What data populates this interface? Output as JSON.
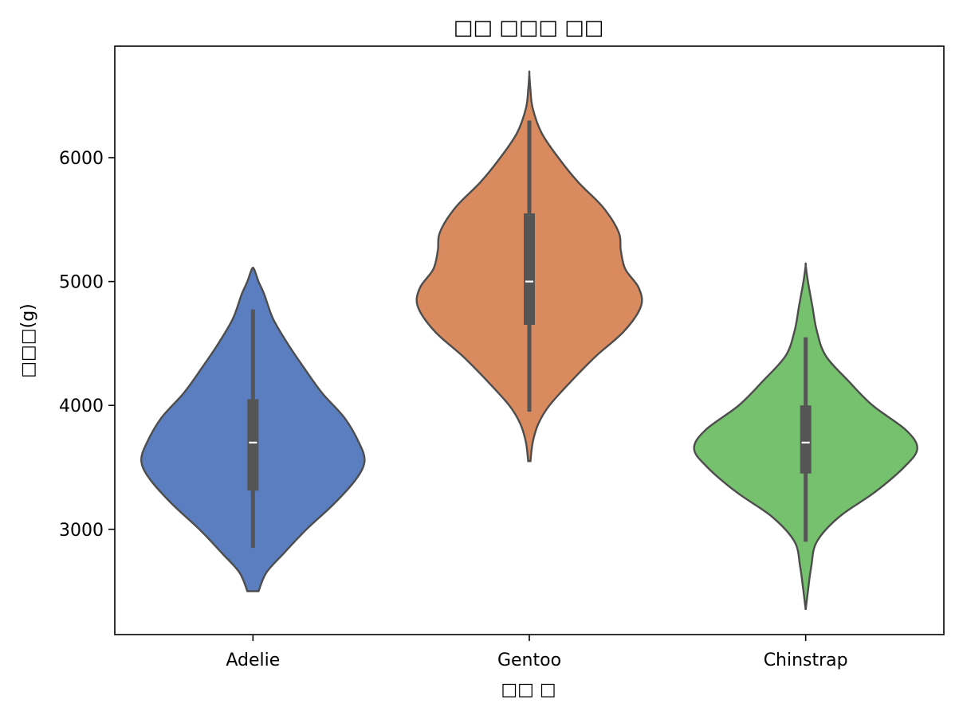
{
  "chart_data": {
    "type": "violin",
    "title": "□□ □□□ □□",
    "xlabel": "□□ □",
    "ylabel": "□□□(g)",
    "ylim": [
      2150,
      6900
    ],
    "yticks": [
      3000,
      4000,
      5000,
      6000
    ],
    "categories": [
      "Adelie",
      "Gentoo",
      "Chinstrap"
    ],
    "colors": [
      "#5b7ec0",
      "#d98a5f",
      "#76c16e"
    ],
    "outline_color": "#4d4d4d",
    "box_color": "#555555",
    "grid": false,
    "violins": [
      {
        "name": "Adelie",
        "min": 2850,
        "q1": 3312,
        "median": 3700,
        "q3": 4050,
        "max": 4775,
        "kde_range": [
          2500,
          5100
        ],
        "density": [
          [
            2500,
            0.05
          ],
          [
            2650,
            0.12
          ],
          [
            2800,
            0.27
          ],
          [
            3000,
            0.48
          ],
          [
            3200,
            0.72
          ],
          [
            3400,
            0.92
          ],
          [
            3550,
            1.0
          ],
          [
            3700,
            0.95
          ],
          [
            3900,
            0.82
          ],
          [
            4100,
            0.62
          ],
          [
            4300,
            0.46
          ],
          [
            4500,
            0.31
          ],
          [
            4700,
            0.18
          ],
          [
            4900,
            0.1
          ],
          [
            5000,
            0.05
          ],
          [
            5100,
            0.01
          ]
        ]
      },
      {
        "name": "Gentoo",
        "min": 3950,
        "q1": 4650,
        "median": 5000,
        "q3": 5550,
        "max": 6300,
        "kde_range": [
          3550,
          6680
        ],
        "density": [
          [
            3550,
            0.01
          ],
          [
            3700,
            0.03
          ],
          [
            3850,
            0.08
          ],
          [
            4000,
            0.18
          ],
          [
            4200,
            0.38
          ],
          [
            4400,
            0.6
          ],
          [
            4600,
            0.85
          ],
          [
            4800,
            1.0
          ],
          [
            4950,
            0.98
          ],
          [
            5100,
            0.86
          ],
          [
            5250,
            0.82
          ],
          [
            5400,
            0.8
          ],
          [
            5600,
            0.66
          ],
          [
            5800,
            0.44
          ],
          [
            6000,
            0.26
          ],
          [
            6200,
            0.11
          ],
          [
            6400,
            0.03
          ],
          [
            6550,
            0.01
          ],
          [
            6680,
            0.0
          ]
        ]
      },
      {
        "name": "Chinstrap",
        "min": 2900,
        "q1": 3450,
        "median": 3700,
        "q3": 4000,
        "max": 4550,
        "kde_range": [
          2350,
          5130
        ],
        "density": [
          [
            2350,
            0.0
          ],
          [
            2500,
            0.02
          ],
          [
            2700,
            0.05
          ],
          [
            2900,
            0.1
          ],
          [
            3100,
            0.3
          ],
          [
            3300,
            0.62
          ],
          [
            3500,
            0.88
          ],
          [
            3650,
            1.0
          ],
          [
            3800,
            0.9
          ],
          [
            4000,
            0.6
          ],
          [
            4200,
            0.38
          ],
          [
            4400,
            0.18
          ],
          [
            4600,
            0.1
          ],
          [
            4800,
            0.06
          ],
          [
            5000,
            0.02
          ],
          [
            5130,
            0.0
          ]
        ]
      }
    ]
  }
}
